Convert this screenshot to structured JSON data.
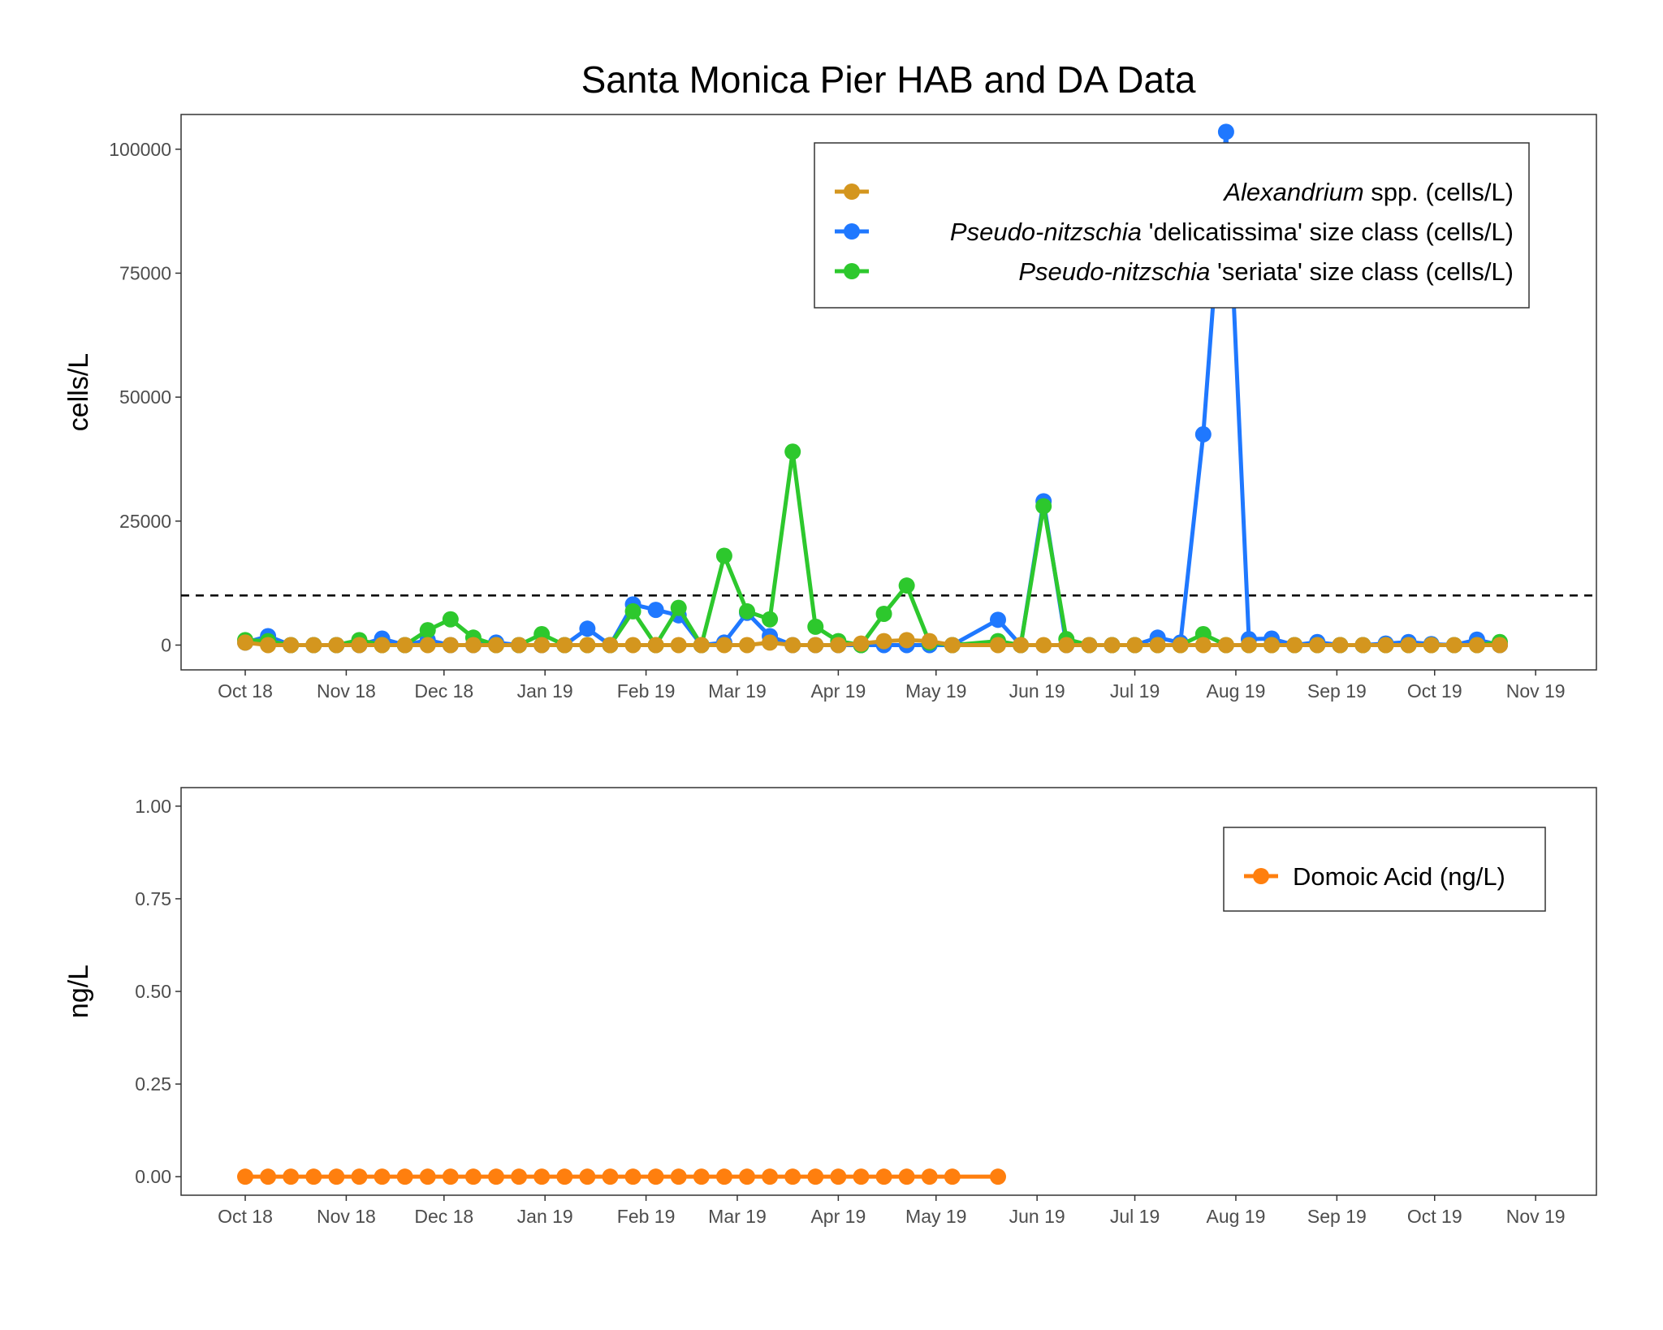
{
  "chart_data": [
    {
      "type": "line",
      "title": "Santa Monica Pier HAB and DA Data",
      "xlabel": "",
      "ylabel": "cells/L",
      "ylim": [
        -5000,
        107000
      ],
      "yticks": [
        0,
        25000,
        50000,
        75000,
        100000
      ],
      "ytick_labels": [
        "0",
        "25000",
        "50000",
        "75000",
        "100000"
      ],
      "xtick_dates": [
        "2018-10-01",
        "2018-11-01",
        "2018-12-01",
        "2019-01-01",
        "2019-02-01",
        "2019-03-01",
        "2019-04-01",
        "2019-05-01",
        "2019-06-01",
        "2019-07-01",
        "2019-08-01",
        "2019-09-01",
        "2019-10-01",
        "2019-11-01"
      ],
      "xtick_labels": [
        "Oct 18",
        "Nov 18",
        "Dec 18",
        "Jan 19",
        "Feb 19",
        "Mar 19",
        "Apr 19",
        "May 19",
        "Jun 19",
        "Jul 19",
        "Aug 19",
        "Sep 19",
        "Oct 19",
        "Nov 19"
      ],
      "threshold": 10000,
      "grid": false,
      "legend_position": "top-right",
      "x": [
        "2018-10-01",
        "2018-10-08",
        "2018-10-15",
        "2018-10-22",
        "2018-10-29",
        "2018-11-05",
        "2018-11-12",
        "2018-11-19",
        "2018-11-26",
        "2018-12-03",
        "2018-12-10",
        "2018-12-17",
        "2018-12-24",
        "2018-12-31",
        "2019-01-07",
        "2019-01-14",
        "2019-01-21",
        "2019-01-28",
        "2019-02-04",
        "2019-02-11",
        "2019-02-18",
        "2019-02-25",
        "2019-03-04",
        "2019-03-11",
        "2019-03-18",
        "2019-03-25",
        "2019-04-01",
        "2019-04-08",
        "2019-04-15",
        "2019-04-22",
        "2019-04-29",
        "2019-05-06",
        "2019-05-20",
        "2019-05-27",
        "2019-06-03",
        "2019-06-10",
        "2019-06-17",
        "2019-06-24",
        "2019-07-01",
        "2019-07-08",
        "2019-07-15",
        "2019-07-22",
        "2019-07-29",
        "2019-08-05",
        "2019-08-12",
        "2019-08-19",
        "2019-08-26",
        "2019-09-02",
        "2019-09-09",
        "2019-09-16",
        "2019-09-23",
        "2019-09-30",
        "2019-10-07",
        "2019-10-14",
        "2019-10-21"
      ],
      "series": [
        {
          "name": "Pseudo-nitzschia 'delicatissima' size class (cells/L)",
          "name_italic": "Pseudo-nitzschia",
          "name_rest": " 'delicatissima' size class (cells/L)",
          "color": "#1F78FF",
          "values": [
            500,
            1800,
            0,
            0,
            0,
            0,
            1300,
            0,
            1000,
            0,
            0,
            500,
            0,
            0,
            0,
            3300,
            0,
            8200,
            7100,
            6000,
            0,
            500,
            6500,
            1800,
            0,
            0,
            0,
            0,
            0,
            0,
            0,
            0,
            5100,
            0,
            29000,
            0,
            0,
            0,
            0,
            1500,
            500,
            42500,
            103500,
            1200,
            1300,
            0,
            600,
            0,
            0,
            300,
            600,
            200,
            0,
            1100,
            0
          ]
        },
        {
          "name": "Pseudo-nitzschia 'seriata' size class (cells/L)",
          "name_italic": "Pseudo-nitzschia",
          "name_rest": " 'seriata' size class (cells/L)",
          "color": "#2DC82D",
          "values": [
            1000,
            800,
            0,
            0,
            0,
            1000,
            0,
            0,
            3000,
            5200,
            1500,
            0,
            0,
            2200,
            0,
            0,
            0,
            6800,
            0,
            7500,
            0,
            18000,
            6800,
            5200,
            39000,
            3700,
            800,
            0,
            6300,
            12000,
            500,
            0,
            800,
            0,
            28000,
            1200,
            0,
            0,
            0,
            0,
            0,
            2200,
            0,
            0,
            0,
            0,
            0,
            0,
            0,
            0,
            0,
            0,
            0,
            0,
            600
          ]
        },
        {
          "name": "Alexandrium spp. (cells/L)",
          "name_italic": "Alexandrium",
          "name_rest": " spp. (cells/L)",
          "color": "#D4961E",
          "values": [
            500,
            0,
            0,
            0,
            0,
            0,
            0,
            0,
            0,
            0,
            0,
            0,
            0,
            0,
            0,
            0,
            0,
            0,
            0,
            0,
            0,
            0,
            0,
            500,
            0,
            0,
            0,
            300,
            800,
            1000,
            800,
            0,
            0,
            0,
            0,
            0,
            0,
            0,
            0,
            0,
            0,
            0,
            0,
            0,
            0,
            0,
            0,
            0,
            0,
            0,
            0,
            0,
            0,
            0,
            0
          ]
        }
      ],
      "legend_order": [
        2,
        0,
        1
      ]
    },
    {
      "type": "line",
      "title": "",
      "xlabel": "",
      "ylabel": "ng/L",
      "ylim": [
        -0.05,
        1.05
      ],
      "yticks": [
        0,
        0.25,
        0.5,
        0.75,
        1.0
      ],
      "ytick_labels": [
        "0.00",
        "0.25",
        "0.50",
        "0.75",
        "1.00"
      ],
      "xtick_dates": [
        "2018-10-01",
        "2018-11-01",
        "2018-12-01",
        "2019-01-01",
        "2019-02-01",
        "2019-03-01",
        "2019-04-01",
        "2019-05-01",
        "2019-06-01",
        "2019-07-01",
        "2019-08-01",
        "2019-09-01",
        "2019-10-01",
        "2019-11-01"
      ],
      "xtick_labels": [
        "Oct 18",
        "Nov 18",
        "Dec 18",
        "Jan 19",
        "Feb 19",
        "Mar 19",
        "Apr 19",
        "May 19",
        "Jun 19",
        "Jul 19",
        "Aug 19",
        "Sep 19",
        "Oct 19",
        "Nov 19"
      ],
      "grid": false,
      "legend_position": "top-right",
      "x": [
        "2018-10-01",
        "2018-10-08",
        "2018-10-15",
        "2018-10-22",
        "2018-10-29",
        "2018-11-05",
        "2018-11-12",
        "2018-11-19",
        "2018-11-26",
        "2018-12-03",
        "2018-12-10",
        "2018-12-17",
        "2018-12-24",
        "2018-12-31",
        "2019-01-07",
        "2019-01-14",
        "2019-01-21",
        "2019-01-28",
        "2019-02-04",
        "2019-02-11",
        "2019-02-18",
        "2019-02-25",
        "2019-03-04",
        "2019-03-11",
        "2019-03-18",
        "2019-03-25",
        "2019-04-01",
        "2019-04-08",
        "2019-04-15",
        "2019-04-22",
        "2019-04-29",
        "2019-05-06",
        "2019-05-20"
      ],
      "series": [
        {
          "name": "Domoic Acid (ng/L)",
          "color": "#FF7F0E",
          "values": [
            0,
            0,
            0,
            0,
            0,
            0,
            0,
            0,
            0,
            0,
            0,
            0,
            0,
            0,
            0,
            0,
            0,
            0,
            0,
            0,
            0,
            0,
            0,
            0,
            0,
            0,
            0,
            0,
            0,
            0,
            0,
            0,
            0
          ]
        }
      ]
    }
  ]
}
